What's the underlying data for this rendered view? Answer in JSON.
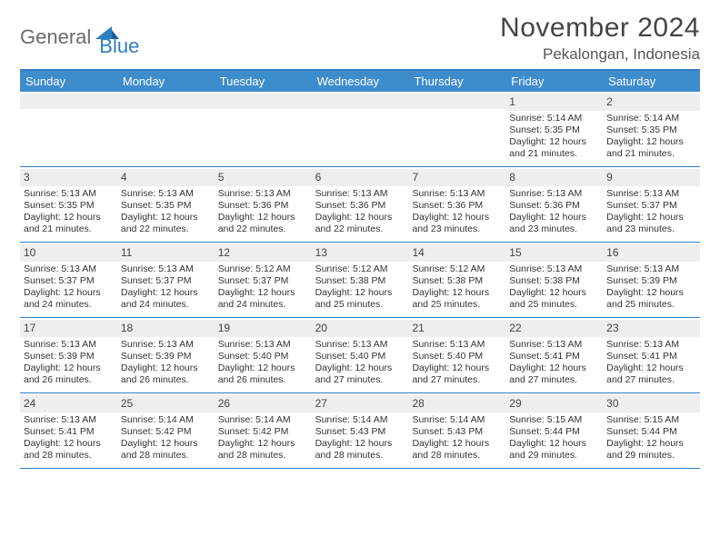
{
  "logo": {
    "part1": "General",
    "part2": "Blue"
  },
  "title": "November 2024",
  "location": "Pekalongan, Indonesia",
  "colors": {
    "header_bg": "#3d8ccc",
    "border": "#2f7ec2",
    "daynum_bg": "#eeeeee",
    "text": "#333333",
    "logo_gray": "#6a6a6a",
    "logo_blue": "#2f7ec2"
  },
  "weekdays": [
    "Sunday",
    "Monday",
    "Tuesday",
    "Wednesday",
    "Thursday",
    "Friday",
    "Saturday"
  ],
  "weeks": [
    [
      {
        "day": "",
        "sunrise": "",
        "sunset": "",
        "daylight": ""
      },
      {
        "day": "",
        "sunrise": "",
        "sunset": "",
        "daylight": ""
      },
      {
        "day": "",
        "sunrise": "",
        "sunset": "",
        "daylight": ""
      },
      {
        "day": "",
        "sunrise": "",
        "sunset": "",
        "daylight": ""
      },
      {
        "day": "",
        "sunrise": "",
        "sunset": "",
        "daylight": ""
      },
      {
        "day": "1",
        "sunrise": "Sunrise: 5:14 AM",
        "sunset": "Sunset: 5:35 PM",
        "daylight": "Daylight: 12 hours and 21 minutes."
      },
      {
        "day": "2",
        "sunrise": "Sunrise: 5:14 AM",
        "sunset": "Sunset: 5:35 PM",
        "daylight": "Daylight: 12 hours and 21 minutes."
      }
    ],
    [
      {
        "day": "3",
        "sunrise": "Sunrise: 5:13 AM",
        "sunset": "Sunset: 5:35 PM",
        "daylight": "Daylight: 12 hours and 21 minutes."
      },
      {
        "day": "4",
        "sunrise": "Sunrise: 5:13 AM",
        "sunset": "Sunset: 5:35 PM",
        "daylight": "Daylight: 12 hours and 22 minutes."
      },
      {
        "day": "5",
        "sunrise": "Sunrise: 5:13 AM",
        "sunset": "Sunset: 5:36 PM",
        "daylight": "Daylight: 12 hours and 22 minutes."
      },
      {
        "day": "6",
        "sunrise": "Sunrise: 5:13 AM",
        "sunset": "Sunset: 5:36 PM",
        "daylight": "Daylight: 12 hours and 22 minutes."
      },
      {
        "day": "7",
        "sunrise": "Sunrise: 5:13 AM",
        "sunset": "Sunset: 5:36 PM",
        "daylight": "Daylight: 12 hours and 23 minutes."
      },
      {
        "day": "8",
        "sunrise": "Sunrise: 5:13 AM",
        "sunset": "Sunset: 5:36 PM",
        "daylight": "Daylight: 12 hours and 23 minutes."
      },
      {
        "day": "9",
        "sunrise": "Sunrise: 5:13 AM",
        "sunset": "Sunset: 5:37 PM",
        "daylight": "Daylight: 12 hours and 23 minutes."
      }
    ],
    [
      {
        "day": "10",
        "sunrise": "Sunrise: 5:13 AM",
        "sunset": "Sunset: 5:37 PM",
        "daylight": "Daylight: 12 hours and 24 minutes."
      },
      {
        "day": "11",
        "sunrise": "Sunrise: 5:13 AM",
        "sunset": "Sunset: 5:37 PM",
        "daylight": "Daylight: 12 hours and 24 minutes."
      },
      {
        "day": "12",
        "sunrise": "Sunrise: 5:12 AM",
        "sunset": "Sunset: 5:37 PM",
        "daylight": "Daylight: 12 hours and 24 minutes."
      },
      {
        "day": "13",
        "sunrise": "Sunrise: 5:12 AM",
        "sunset": "Sunset: 5:38 PM",
        "daylight": "Daylight: 12 hours and 25 minutes."
      },
      {
        "day": "14",
        "sunrise": "Sunrise: 5:12 AM",
        "sunset": "Sunset: 5:38 PM",
        "daylight": "Daylight: 12 hours and 25 minutes."
      },
      {
        "day": "15",
        "sunrise": "Sunrise: 5:13 AM",
        "sunset": "Sunset: 5:38 PM",
        "daylight": "Daylight: 12 hours and 25 minutes."
      },
      {
        "day": "16",
        "sunrise": "Sunrise: 5:13 AM",
        "sunset": "Sunset: 5:39 PM",
        "daylight": "Daylight: 12 hours and 25 minutes."
      }
    ],
    [
      {
        "day": "17",
        "sunrise": "Sunrise: 5:13 AM",
        "sunset": "Sunset: 5:39 PM",
        "daylight": "Daylight: 12 hours and 26 minutes."
      },
      {
        "day": "18",
        "sunrise": "Sunrise: 5:13 AM",
        "sunset": "Sunset: 5:39 PM",
        "daylight": "Daylight: 12 hours and 26 minutes."
      },
      {
        "day": "19",
        "sunrise": "Sunrise: 5:13 AM",
        "sunset": "Sunset: 5:40 PM",
        "daylight": "Daylight: 12 hours and 26 minutes."
      },
      {
        "day": "20",
        "sunrise": "Sunrise: 5:13 AM",
        "sunset": "Sunset: 5:40 PM",
        "daylight": "Daylight: 12 hours and 27 minutes."
      },
      {
        "day": "21",
        "sunrise": "Sunrise: 5:13 AM",
        "sunset": "Sunset: 5:40 PM",
        "daylight": "Daylight: 12 hours and 27 minutes."
      },
      {
        "day": "22",
        "sunrise": "Sunrise: 5:13 AM",
        "sunset": "Sunset: 5:41 PM",
        "daylight": "Daylight: 12 hours and 27 minutes."
      },
      {
        "day": "23",
        "sunrise": "Sunrise: 5:13 AM",
        "sunset": "Sunset: 5:41 PM",
        "daylight": "Daylight: 12 hours and 27 minutes."
      }
    ],
    [
      {
        "day": "24",
        "sunrise": "Sunrise: 5:13 AM",
        "sunset": "Sunset: 5:41 PM",
        "daylight": "Daylight: 12 hours and 28 minutes."
      },
      {
        "day": "25",
        "sunrise": "Sunrise: 5:14 AM",
        "sunset": "Sunset: 5:42 PM",
        "daylight": "Daylight: 12 hours and 28 minutes."
      },
      {
        "day": "26",
        "sunrise": "Sunrise: 5:14 AM",
        "sunset": "Sunset: 5:42 PM",
        "daylight": "Daylight: 12 hours and 28 minutes."
      },
      {
        "day": "27",
        "sunrise": "Sunrise: 5:14 AM",
        "sunset": "Sunset: 5:43 PM",
        "daylight": "Daylight: 12 hours and 28 minutes."
      },
      {
        "day": "28",
        "sunrise": "Sunrise: 5:14 AM",
        "sunset": "Sunset: 5:43 PM",
        "daylight": "Daylight: 12 hours and 28 minutes."
      },
      {
        "day": "29",
        "sunrise": "Sunrise: 5:15 AM",
        "sunset": "Sunset: 5:44 PM",
        "daylight": "Daylight: 12 hours and 29 minutes."
      },
      {
        "day": "30",
        "sunrise": "Sunrise: 5:15 AM",
        "sunset": "Sunset: 5:44 PM",
        "daylight": "Daylight: 12 hours and 29 minutes."
      }
    ]
  ]
}
